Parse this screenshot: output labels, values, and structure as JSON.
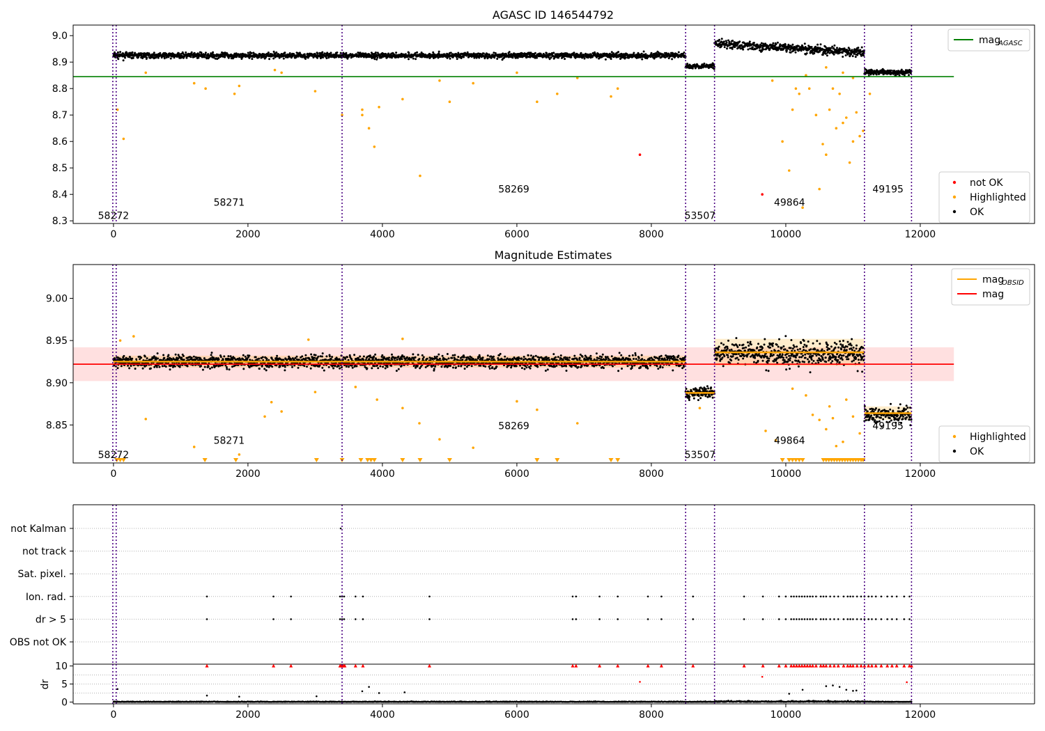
{
  "chart_data": [
    {
      "type": "scatter",
      "title": "AGASC ID 146544792",
      "xlabel": "",
      "ylabel": "",
      "xlim": [
        -600,
        13700
      ],
      "ylim": [
        8.29,
        9.04
      ],
      "xticks": [
        0,
        2000,
        4000,
        6000,
        8000,
        10000,
        12000
      ],
      "xtick_labels": [
        "0",
        "2000",
        "4000",
        "6000",
        "8000",
        "10000",
        "12000"
      ],
      "yticks": [
        8.3,
        8.4,
        8.5,
        8.6,
        8.7,
        8.8,
        8.9,
        9.0
      ],
      "ytick_labels": [
        "8.3",
        "8.4",
        "8.5",
        "8.6",
        "8.7",
        "8.8",
        "8.9",
        "9.0"
      ],
      "grid": false,
      "legends": [
        {
          "placement": "top-right",
          "entries": [
            {
              "label": "mag",
              "sub": "AGASC",
              "color": "#008000",
              "kind": "line"
            }
          ]
        },
        {
          "placement": "bottom-right",
          "entries": [
            {
              "label": "not OK",
              "color": "#ff0000",
              "kind": "dot"
            },
            {
              "label": "Highlighted",
              "color": "#ffa500",
              "kind": "dot"
            },
            {
              "label": "OK",
              "color": "#000000",
              "kind": "dot"
            }
          ]
        }
      ],
      "vlines": [
        -10,
        40,
        3400,
        8510,
        8940,
        11170,
        11870
      ],
      "obsid_labels": [
        {
          "text": "58272",
          "x": 0,
          "y": 8.32
        },
        {
          "text": "58271",
          "x": 1720,
          "y": 8.37
        },
        {
          "text": "58269",
          "x": 5955,
          "y": 8.42
        },
        {
          "text": "53507",
          "x": 8725,
          "y": 8.32
        },
        {
          "text": "49864",
          "x": 10055,
          "y": 8.37
        },
        {
          "text": "49195",
          "x": 11520,
          "y": 8.42
        }
      ],
      "hlines": [
        {
          "name": "mag_AGASC",
          "y": 8.845,
          "x": [
            -600,
            12500
          ],
          "color": "#008000"
        }
      ],
      "segments": [
        {
          "x": [
            0,
            8510
          ],
          "mean": 8.925,
          "scatter": 0.012
        },
        {
          "x": [
            8510,
            8940
          ],
          "mean": 8.885,
          "scatter": 0.01
        },
        {
          "x": [
            8940,
            11170
          ],
          "mean": 8.935,
          "scatter": 0.018
        },
        {
          "x": [
            11170,
            11870
          ],
          "mean": 8.862,
          "scatter": 0.012
        }
      ],
      "series": [
        {
          "name": "Highlighted",
          "color": "#ffa500",
          "points": [
            [
              60,
              8.72
            ],
            [
              150,
              8.61
            ],
            [
              480,
              8.86
            ],
            [
              1200,
              8.82
            ],
            [
              1370,
              8.8
            ],
            [
              1800,
              8.78
            ],
            [
              1870,
              8.81
            ],
            [
              2400,
              8.87
            ],
            [
              2500,
              8.86
            ],
            [
              3000,
              8.79
            ],
            [
              3400,
              8.7
            ],
            [
              3700,
              8.72
            ],
            [
              3700,
              8.7
            ],
            [
              3800,
              8.65
            ],
            [
              3880,
              8.58
            ],
            [
              3950,
              8.73
            ],
            [
              4300,
              8.76
            ],
            [
              4560,
              8.47
            ],
            [
              4850,
              8.83
            ],
            [
              5000,
              8.75
            ],
            [
              5350,
              8.82
            ],
            [
              6000,
              8.86
            ],
            [
              6300,
              8.75
            ],
            [
              6600,
              8.78
            ],
            [
              6900,
              8.84
            ],
            [
              7400,
              8.77
            ],
            [
              7500,
              8.8
            ],
            [
              9800,
              8.83
            ],
            [
              9950,
              8.6
            ],
            [
              10050,
              8.49
            ],
            [
              10100,
              8.72
            ],
            [
              10150,
              8.8
            ],
            [
              10200,
              8.78
            ],
            [
              10250,
              8.35
            ],
            [
              10350,
              8.8
            ],
            [
              10450,
              8.7
            ],
            [
              10500,
              8.42
            ],
            [
              10550,
              8.59
            ],
            [
              10600,
              8.55
            ],
            [
              10650,
              8.72
            ],
            [
              10700,
              8.8
            ],
            [
              10750,
              8.65
            ],
            [
              10800,
              8.78
            ],
            [
              10850,
              8.67
            ],
            [
              10900,
              8.69
            ],
            [
              10950,
              8.52
            ],
            [
              11000,
              8.6
            ],
            [
              11050,
              8.71
            ],
            [
              11100,
              8.62
            ],
            [
              11150,
              8.64
            ],
            [
              11250,
              8.78
            ],
            [
              10300,
              8.85
            ],
            [
              10600,
              8.88
            ],
            [
              10850,
              8.86
            ],
            [
              11000,
              8.84
            ]
          ]
        },
        {
          "name": "not OK",
          "color": "#ff0000",
          "points": [
            [
              7830,
              8.55
            ],
            [
              9650,
              8.4
            ]
          ]
        }
      ]
    },
    {
      "type": "scatter",
      "title": "Magnitude Estimates",
      "xlabel": "",
      "ylabel": "",
      "xlim": [
        -600,
        13700
      ],
      "ylim": [
        8.805,
        9.04
      ],
      "xticks": [
        0,
        2000,
        4000,
        6000,
        8000,
        10000,
        12000
      ],
      "xtick_labels": [
        "0",
        "2000",
        "4000",
        "6000",
        "8000",
        "10000",
        "12000"
      ],
      "yticks": [
        8.85,
        8.9,
        8.95,
        9.0
      ],
      "ytick_labels": [
        "8.85",
        "8.90",
        "8.95",
        "9.00"
      ],
      "grid": false,
      "legends": [
        {
          "placement": "top-right",
          "entries": [
            {
              "label": "mag",
              "sub": "OBSID",
              "color": "#ffa500",
              "kind": "line"
            },
            {
              "label": "mag",
              "color": "#ff0000",
              "kind": "line"
            }
          ]
        },
        {
          "placement": "bottom-right",
          "entries": [
            {
              "label": "Highlighted",
              "color": "#ffa500",
              "kind": "dot"
            },
            {
              "label": "OK",
              "color": "#000000",
              "kind": "dot"
            }
          ]
        }
      ],
      "vlines": [
        -10,
        40,
        3400,
        8510,
        8940,
        11170,
        11870
      ],
      "obsid_labels": [
        {
          "text": "58272",
          "x": 0,
          "y": 8.815
        },
        {
          "text": "58271",
          "x": 1720,
          "y": 8.832
        },
        {
          "text": "58269",
          "x": 5955,
          "y": 8.849
        },
        {
          "text": "53507",
          "x": 8725,
          "y": 8.815
        },
        {
          "text": "49864",
          "x": 10055,
          "y": 8.832
        },
        {
          "text": "49195",
          "x": 11520,
          "y": 8.849
        }
      ],
      "mag_line": {
        "y": 8.922,
        "band": [
          8.902,
          8.942
        ],
        "x": [
          -600,
          12500
        ],
        "color": "#ff0000"
      },
      "obsid_means": [
        {
          "x": [
            0,
            8510
          ],
          "y": 8.925,
          "band": [
            8.918,
            8.932
          ]
        },
        {
          "x": [
            8510,
            8940
          ],
          "y": 8.888,
          "band": [
            8.883,
            8.893
          ]
        },
        {
          "x": [
            8940,
            11170
          ],
          "y": 8.936,
          "band": [
            8.92,
            8.952
          ]
        },
        {
          "x": [
            11170,
            11870
          ],
          "y": 8.864,
          "band": [
            8.856,
            8.872
          ]
        }
      ],
      "segments": [
        {
          "x": [
            0,
            8510
          ],
          "mean": 8.925,
          "scatter": 0.009
        },
        {
          "x": [
            8510,
            8940
          ],
          "mean": 8.888,
          "scatter": 0.008
        },
        {
          "x": [
            8940,
            11170
          ],
          "mean": 8.935,
          "scatter": 0.016
        },
        {
          "x": [
            11170,
            11870
          ],
          "mean": 8.862,
          "scatter": 0.012
        }
      ],
      "series": [
        {
          "name": "Highlighted",
          "color": "#ffa500",
          "points": [
            [
              480,
              8.857
            ],
            [
              1200,
              8.824
            ],
            [
              1870,
              8.815
            ],
            [
              2250,
              8.86
            ],
            [
              2350,
              8.877
            ],
            [
              2500,
              8.866
            ],
            [
              3000,
              8.889
            ],
            [
              3600,
              8.895
            ],
            [
              3920,
              8.88
            ],
            [
              4300,
              8.87
            ],
            [
              4550,
              8.852
            ],
            [
              4850,
              8.833
            ],
            [
              5350,
              8.823
            ],
            [
              6000,
              8.878
            ],
            [
              6300,
              8.868
            ],
            [
              6900,
              8.852
            ],
            [
              9700,
              8.843
            ],
            [
              9850,
              8.832
            ],
            [
              10100,
              8.893
            ],
            [
              10300,
              8.885
            ],
            [
              10400,
              8.862
            ],
            [
              10500,
              8.856
            ],
            [
              10600,
              8.845
            ],
            [
              10650,
              8.872
            ],
            [
              10700,
              8.858
            ],
            [
              10750,
              8.825
            ],
            [
              10850,
              8.83
            ],
            [
              10900,
              8.88
            ],
            [
              11000,
              8.86
            ],
            [
              11100,
              8.84
            ],
            [
              100,
              8.95
            ],
            [
              300,
              8.955
            ],
            [
              2900,
              8.951
            ],
            [
              4300,
              8.952
            ],
            [
              8720,
              8.87
            ]
          ]
        },
        {
          "name": "below-range",
          "marker": "triangle-down",
          "color": "#ffa500",
          "x": [
            50,
            100,
            150,
            1360,
            1820,
            3020,
            3400,
            3680,
            3780,
            3830,
            3880,
            4300,
            4560,
            5000,
            6300,
            6600,
            7400,
            7500,
            9950,
            10050,
            10100,
            10150,
            10200,
            10250,
            10560,
            10600,
            10640,
            10680,
            10720,
            10760,
            10800,
            10840,
            10880,
            10920,
            10960,
            11000,
            11040,
            11080,
            11120,
            11150
          ]
        }
      ]
    },
    {
      "type": "scatter",
      "title": "",
      "xlabel": "",
      "ylabel": "",
      "xlim": [
        -600,
        13700
      ],
      "categories": [
        "not Kalman",
        "not track",
        "Sat. pixel.",
        "Ion. rad.",
        "dr > 5",
        "OBS not OK"
      ],
      "grid": true,
      "vlines": [
        -10,
        40,
        3400,
        8510,
        8940,
        11170,
        11870
      ],
      "flag_points": [
        {
          "category": "not Kalman",
          "x": [
            3380
          ]
        },
        {
          "category": "Ion. rad.",
          "x": [
            1390,
            2380,
            2640,
            3370,
            3400,
            3430,
            3600,
            3710,
            4700,
            6830,
            6880,
            7230,
            7500,
            7950,
            8150,
            8620,
            9380,
            9660,
            9900,
            10000,
            10080,
            10120,
            10160,
            10200,
            10240,
            10280,
            10320,
            10360,
            10400,
            10450,
            10520,
            10560,
            10600,
            10660,
            10720,
            10780,
            10860,
            10920,
            10960,
            11000,
            11060,
            11120,
            11170,
            11230,
            11280,
            11340,
            11420,
            11510,
            11580,
            11650,
            11760,
            11840
          ]
        },
        {
          "category": "dr > 5",
          "x": [
            1390,
            2380,
            2640,
            3370,
            3400,
            3430,
            3600,
            3710,
            4700,
            6830,
            6880,
            7230,
            7500,
            7950,
            8150,
            8620,
            9380,
            9660,
            9900,
            10000,
            10080,
            10120,
            10160,
            10200,
            10240,
            10280,
            10320,
            10360,
            10400,
            10450,
            10520,
            10560,
            10600,
            10660,
            10720,
            10780,
            10860,
            10920,
            10960,
            11000,
            11060,
            11120,
            11170,
            11230,
            11280,
            11340,
            11420,
            11510,
            11580,
            11650,
            11760,
            11840
          ]
        }
      ]
    },
    {
      "type": "scatter",
      "title": "",
      "xlabel": "",
      "ylabel": "dr",
      "xlim": [
        -600,
        13700
      ],
      "ylim": [
        -0.5,
        10.5
      ],
      "yticks": [
        0,
        5,
        10
      ],
      "ytick_labels": [
        "0",
        "5",
        "10"
      ],
      "xticks": [
        0,
        2000,
        4000,
        6000,
        8000,
        10000,
        12000
      ],
      "xtick_labels": [
        "0",
        "2000",
        "4000",
        "6000",
        "8000",
        "10000",
        "12000"
      ],
      "grid": true,
      "vlines": [
        -10,
        40,
        3400,
        8510,
        8940,
        11170,
        11870
      ],
      "capped_x": [
        1390,
        2380,
        2640,
        3370,
        3390,
        3400,
        3420,
        3440,
        3600,
        3710,
        4700,
        6830,
        6880,
        7230,
        7500,
        7950,
        8150,
        8620,
        9380,
        9660,
        9900,
        10000,
        10080,
        10120,
        10160,
        10200,
        10240,
        10280,
        10320,
        10360,
        10400,
        10450,
        10520,
        10560,
        10600,
        10660,
        10720,
        10780,
        10860,
        10920,
        10960,
        11000,
        11060,
        11120,
        11170,
        11230,
        11280,
        11340,
        11420,
        11510,
        11580,
        11650,
        11760,
        11840,
        11870
      ],
      "high_points": [
        [
          60,
          3.6
        ],
        [
          1390,
          1.8
        ],
        [
          1870,
          1.5
        ],
        [
          3020,
          1.6
        ],
        [
          3700,
          3.0
        ],
        [
          3800,
          4.2
        ],
        [
          3950,
          2.5
        ],
        [
          4330,
          2.7
        ],
        [
          7830,
          5.6
        ],
        [
          9650,
          7.0
        ],
        [
          10050,
          2.3
        ],
        [
          10250,
          3.4
        ],
        [
          10600,
          4.4
        ],
        [
          10700,
          4.6
        ],
        [
          10800,
          4.2
        ],
        [
          10900,
          3.4
        ],
        [
          11000,
          3.1
        ],
        [
          11050,
          3.2
        ],
        [
          11800,
          5.5
        ]
      ]
    }
  ]
}
